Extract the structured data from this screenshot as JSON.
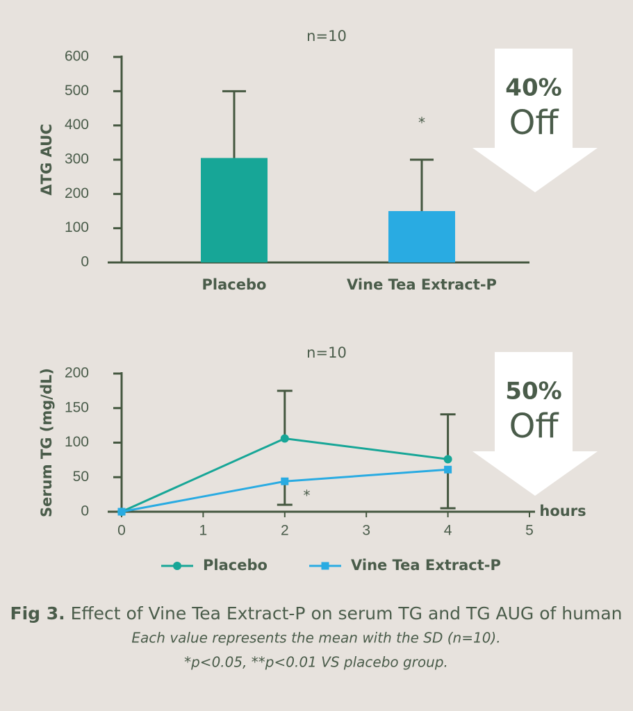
{
  "chart_data": [
    {
      "type": "bar",
      "subtitle": "n=10",
      "ylabel": "ΔTG AUC",
      "categories": [
        "Placebo",
        "Vine Tea Extract-P"
      ],
      "values": [
        305,
        150
      ],
      "errors": [
        195,
        150
      ],
      "colors": [
        "#17a697",
        "#29abe2"
      ],
      "ylim": [
        0,
        600
      ],
      "yticks": [
        0,
        100,
        200,
        300,
        400,
        500,
        600
      ],
      "annotations": [
        {
          "text": "*",
          "category": 1,
          "y": 405
        }
      ],
      "badge": {
        "value": "40%",
        "label": "Off"
      }
    },
    {
      "type": "line",
      "subtitle": "n=10",
      "ylabel": "Serum TG (mg/dL)",
      "xlabel": "hours",
      "x": [
        0,
        2,
        4
      ],
      "xlim": [
        0,
        5
      ],
      "xticks": [
        0,
        1,
        2,
        3,
        4,
        5
      ],
      "ylim": [
        0,
        200
      ],
      "yticks": [
        0,
        50,
        100,
        150,
        200
      ],
      "series": [
        {
          "name": "Placebo",
          "color": "#17a697",
          "marker": "circle",
          "values": [
            0,
            106,
            76
          ],
          "errors": [
            null,
            69,
            65
          ],
          "error_side": "up"
        },
        {
          "name": "Vine Tea Extract-P",
          "color": "#29abe2",
          "marker": "square",
          "values": [
            0,
            44,
            61
          ],
          "errors": [
            null,
            34,
            56
          ],
          "error_side": "down"
        }
      ],
      "annotations": [
        {
          "text": "*",
          "x": 2.27,
          "y": 22
        }
      ],
      "badge": {
        "value": "50%",
        "label": "Off"
      }
    }
  ],
  "caption": {
    "label": "Fig 3.",
    "text": " Effect of Vine Tea Extract-P on serum TG and TG AUG of human",
    "notes": [
      "Each value represents the mean with the SD (n=10).",
      "*p<0.05, **p<0.01 VS placebo group."
    ]
  }
}
